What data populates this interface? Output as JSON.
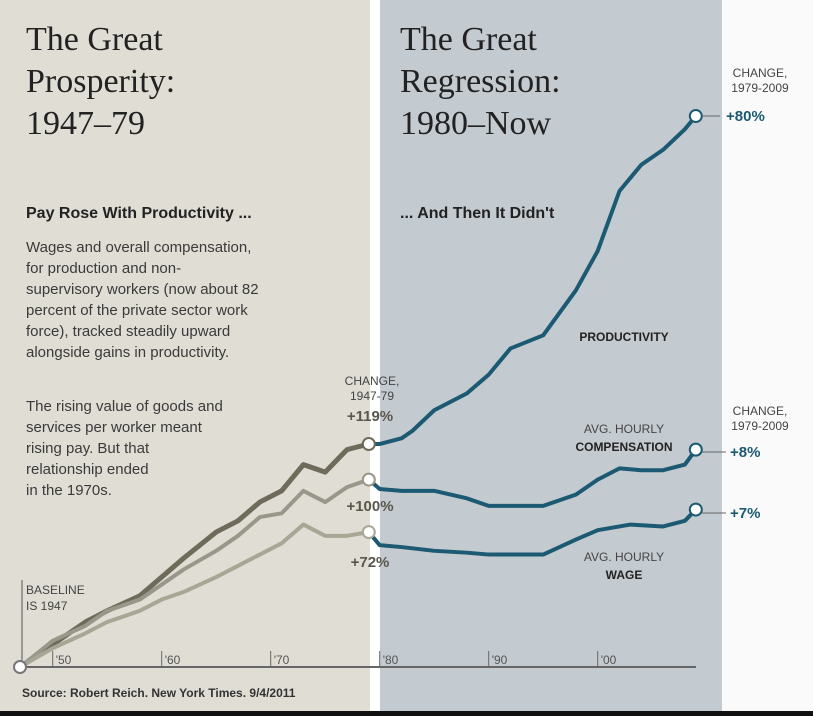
{
  "chart_data": {
    "type": "line",
    "panels": [
      {
        "title": "The Great Prosperity: 1947–79",
        "title_lines": [
          "The Great",
          "Prosperity:",
          "1947–79"
        ],
        "subtitle": "Pay Rose With Productivity ...",
        "x_range": [
          1947,
          1979
        ]
      },
      {
        "title": "The Great Regression: 1980–Now",
        "title_lines": [
          "The Great",
          "Regression:",
          "1980–Now"
        ],
        "subtitle": "... And Then It Didn't",
        "x_range": [
          1979,
          2009
        ]
      }
    ],
    "description_lines": [
      "Wages and overall compensation,",
      "for production and non-",
      "supervisory workers (now about 82",
      "percent of the private sector work",
      "force), tracked steadily upward",
      "alongside gains in productivity."
    ],
    "description2_lines": [
      "The rising value of goods and",
      "services per worker meant",
      "rising pay. But that",
      "relationship ended",
      "in the 1970s."
    ],
    "xlabel": "",
    "ylabel": "",
    "xlim": [
      1947,
      2009
    ],
    "ylim": [
      0,
      300
    ],
    "x_tick_labels": [
      {
        "year": 1950,
        "label": "'50"
      },
      {
        "year": 1960,
        "label": "'60"
      },
      {
        "year": 1970,
        "label": "'70"
      },
      {
        "year": 1980,
        "label": "'80"
      },
      {
        "year": 1990,
        "label": "'90"
      },
      {
        "year": 2000,
        "label": "'00"
      }
    ],
    "baseline_label": [
      "BASELINE",
      "IS 1947"
    ],
    "grid": false,
    "series": [
      {
        "name": "PRODUCTIVITY",
        "label_lines": [
          "PRODUCTIVITY"
        ],
        "x": [
          1947,
          1950,
          1953,
          1955,
          1958,
          1960,
          1962,
          1965,
          1967,
          1969,
          1971,
          1973,
          1975,
          1977,
          1979,
          1980,
          1982,
          1983,
          1985,
          1988,
          1990,
          1992,
          1995,
          1998,
          2000,
          2002,
          2004,
          2006,
          2008,
          2009
        ],
        "y": [
          0,
          12,
          24,
          30,
          38,
          48,
          58,
          72,
          78,
          88,
          94,
          108,
          104,
          116,
          119,
          119,
          122,
          126,
          137,
          146,
          156,
          170,
          177,
          201,
          222,
          254,
          268,
          276,
          287,
          294
        ]
      },
      {
        "name": "AVG. HOURLY COMPENSATION",
        "label_lines": [
          "AVG. HOURLY",
          "COMPENSATION"
        ],
        "x": [
          1947,
          1950,
          1953,
          1955,
          1958,
          1960,
          1962,
          1965,
          1967,
          1969,
          1971,
          1973,
          1975,
          1977,
          1979,
          1980,
          1982,
          1985,
          1988,
          1990,
          1993,
          1995,
          1998,
          2000,
          2002,
          2004,
          2006,
          2008,
          2009
        ],
        "y": [
          0,
          14,
          22,
          30,
          36,
          44,
          52,
          62,
          70,
          80,
          82,
          94,
          88,
          96,
          100,
          95,
          94,
          94,
          90,
          86,
          86,
          86,
          92,
          100,
          106,
          105,
          105,
          108,
          116
        ]
      },
      {
        "name": "AVG. HOURLY WAGE",
        "label_lines": [
          "AVG. HOURLY",
          "WAGE"
        ],
        "x": [
          1947,
          1950,
          1953,
          1955,
          1958,
          1960,
          1962,
          1965,
          1967,
          1969,
          1971,
          1973,
          1975,
          1977,
          1979,
          1980,
          1982,
          1985,
          1988,
          1990,
          1993,
          1995,
          1998,
          2000,
          2003,
          2006,
          2008,
          2009
        ],
        "y": [
          0,
          10,
          18,
          24,
          30,
          36,
          40,
          48,
          54,
          60,
          66,
          76,
          70,
          70,
          72,
          65,
          64,
          62,
          61,
          60,
          60,
          60,
          68,
          73,
          76,
          75,
          78,
          84
        ]
      }
    ],
    "annotations": {
      "change_1947_79": {
        "label_lines": [
          "CHANGE,",
          "1947-79"
        ],
        "productivity": "+119%",
        "compensation": "+100%",
        "wage": "+72%"
      },
      "change_1979_2009_top": {
        "label_lines": [
          "CHANGE,",
          "1979-2009"
        ],
        "productivity": "+80%"
      },
      "change_1979_2009_mid": {
        "label_lines": [
          "CHANGE,",
          "1979-2009"
        ],
        "compensation": "+8%",
        "wage": "+7%"
      }
    },
    "source": "Source: Robert Reich. New York Times. 9/4/2011"
  },
  "colors": {
    "left_panel": "#e0ddd5",
    "right_panel": "#c3cad0",
    "productivity_pre": "#6e6b5b",
    "compensation_pre": "#98978a",
    "wage_pre": "#a8a796",
    "post_1979": "#1b5a72",
    "pct_pre": "#5a574a"
  }
}
